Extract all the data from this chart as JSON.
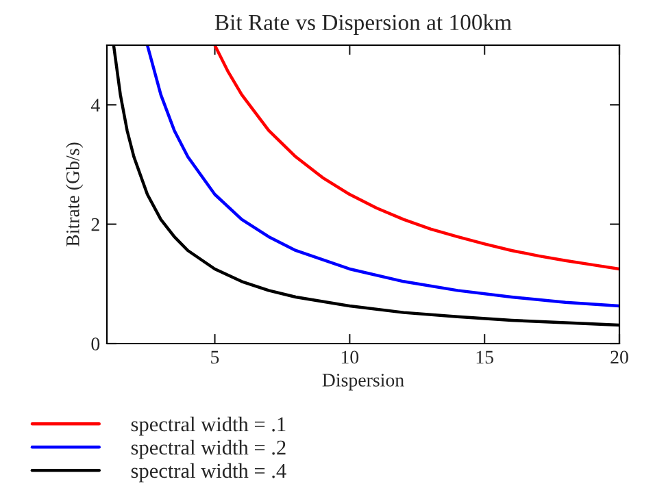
{
  "chart_data": {
    "type": "line",
    "title": "Bit Rate vs Dispersion at 100km",
    "xlabel": "Dispersion",
    "ylabel": "Bitrate (Gb/s)",
    "xlim": [
      1,
      20
    ],
    "ylim": [
      0,
      5
    ],
    "xticks": [
      5,
      10,
      15,
      20
    ],
    "yticks": [
      0,
      2,
      4
    ],
    "grid": false,
    "legend": "bottom",
    "marker": "none",
    "line_style": "solid",
    "series": [
      {
        "name": "spectral width = .1",
        "color": "#ff0000",
        "x": [
          5,
          5.5,
          6,
          7,
          8,
          9,
          10,
          11,
          12,
          13,
          14,
          15,
          16,
          17,
          18,
          19,
          20
        ],
        "values": [
          5,
          4.55,
          4.17,
          3.57,
          3.13,
          2.78,
          2.5,
          2.27,
          2.08,
          1.92,
          1.79,
          1.67,
          1.56,
          1.47,
          1.39,
          1.32,
          1.25
        ]
      },
      {
        "name": "spectral width = .2",
        "color": "#0000ff",
        "x": [
          2.5,
          3,
          3.5,
          4,
          5,
          6,
          7,
          8,
          10,
          12,
          14,
          16,
          18,
          20
        ],
        "values": [
          5,
          4.17,
          3.57,
          3.13,
          2.5,
          2.08,
          1.79,
          1.56,
          1.25,
          1.04,
          0.89,
          0.78,
          0.69,
          0.63
        ]
      },
      {
        "name": "spectral width = .4",
        "color": "#000000",
        "x": [
          1.25,
          1.5,
          1.75,
          2,
          2.5,
          3,
          3.5,
          4,
          5,
          6,
          7,
          8,
          10,
          12,
          14,
          16,
          18,
          20
        ],
        "values": [
          5,
          4.17,
          3.57,
          3.13,
          2.5,
          2.08,
          1.79,
          1.56,
          1.25,
          1.04,
          0.89,
          0.78,
          0.63,
          0.52,
          0.45,
          0.39,
          0.35,
          0.31
        ]
      }
    ]
  }
}
